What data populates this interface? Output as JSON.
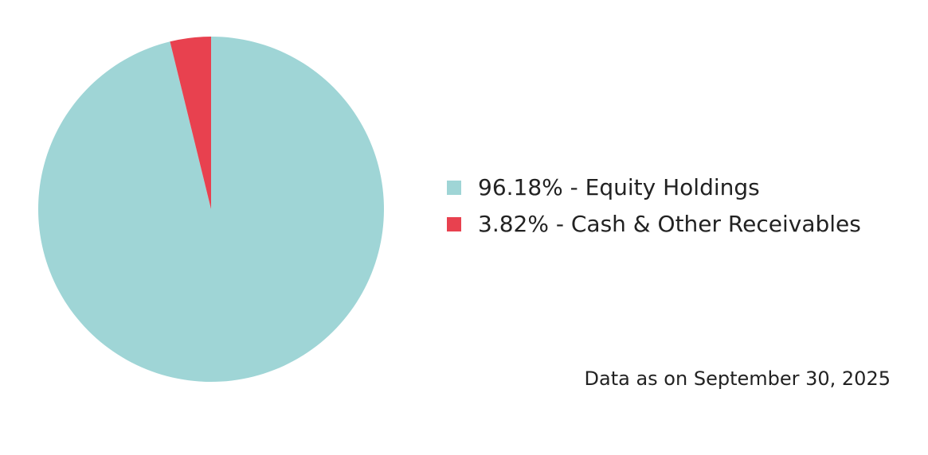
{
  "chart_data": {
    "type": "pie",
    "categories": [
      "96.18% - Equity Holdings",
      "3.82% - Cash & Other Receivables"
    ],
    "values": [
      96.18,
      3.82
    ],
    "colors": [
      "#9fd5d6",
      "#e8414f"
    ],
    "legend": "right",
    "note": "Data as on September 30, 2025"
  }
}
